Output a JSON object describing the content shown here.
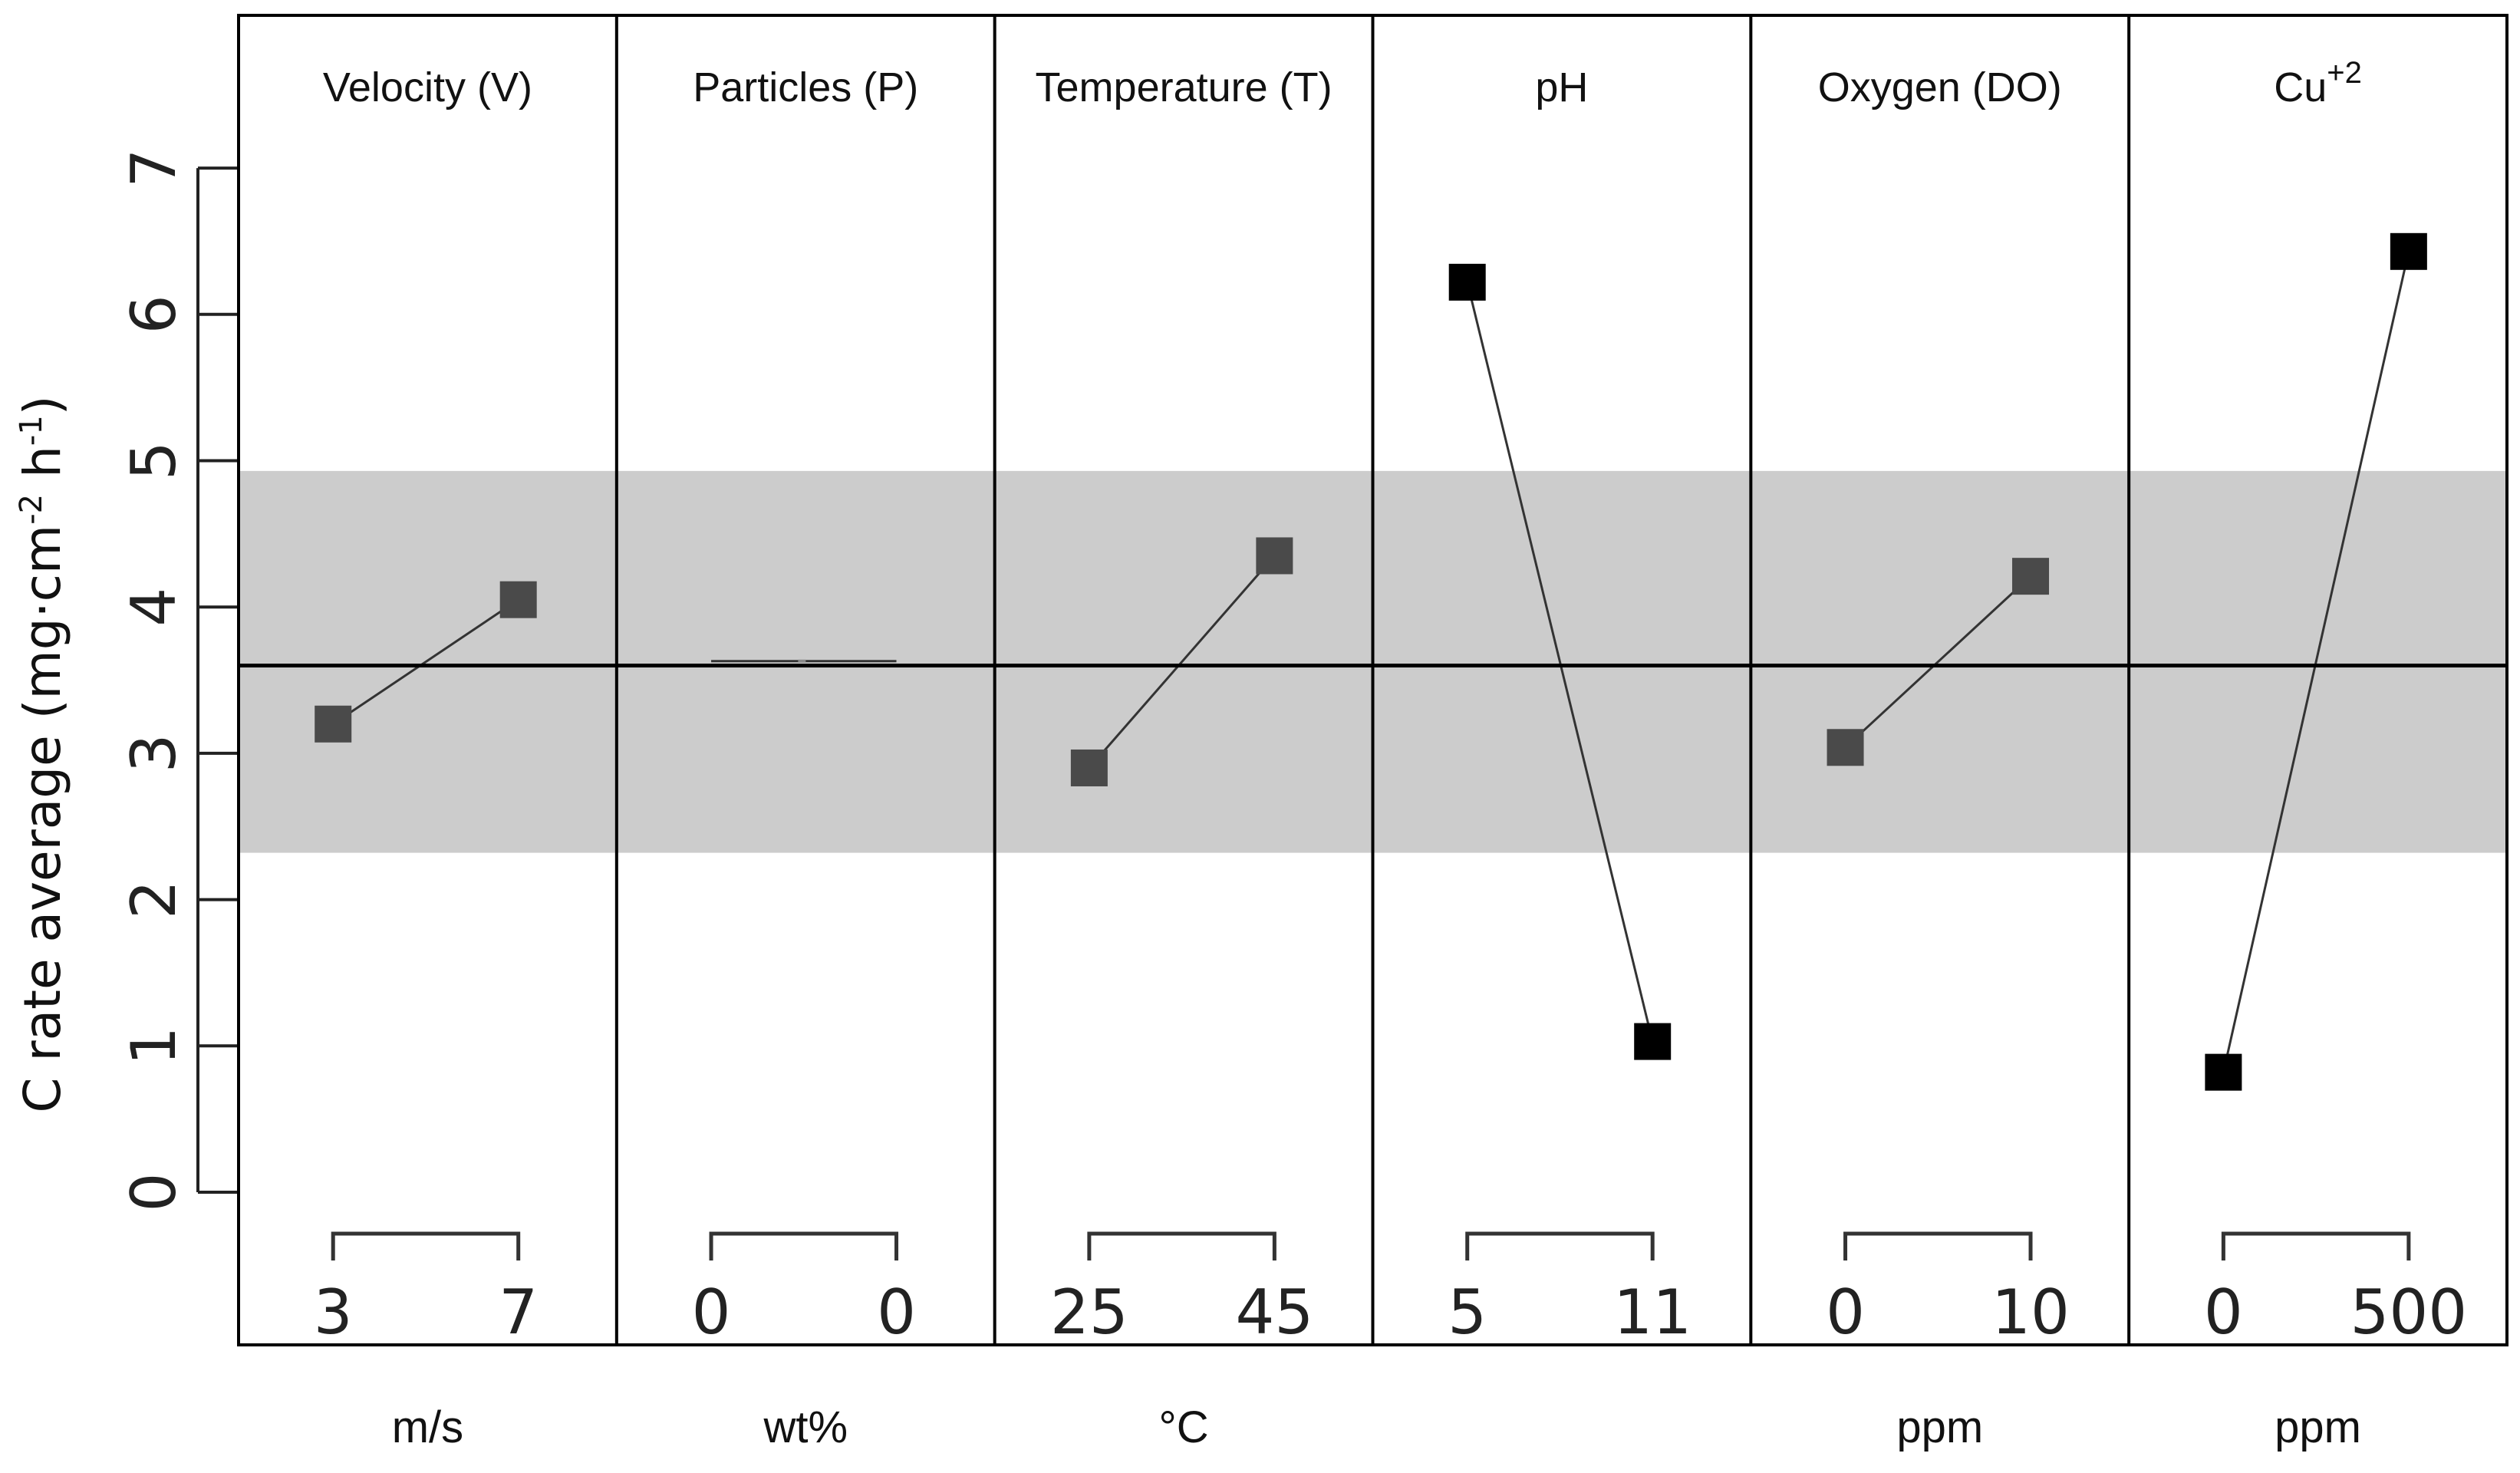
{
  "chart_data": {
    "type": "line",
    "title": "",
    "ylabel": {
      "base": "C rate average (mg·cm",
      "exp1": "-2",
      "mid": " h",
      "exp2": "-1",
      "end": ")"
    },
    "ylim": [
      0,
      7
    ],
    "yticks": [
      0,
      1,
      2,
      3,
      4,
      5,
      6,
      7
    ],
    "reference_line": 3.6,
    "band": [
      2.32,
      4.93
    ],
    "panels": [
      {
        "title": "Velocity (V)",
        "unit": "m/s",
        "levels": [
          "3",
          "7"
        ],
        "values": [
          3.2,
          4.05
        ],
        "color": "#4a4a4a"
      },
      {
        "title": "Particles (P)",
        "unit": "wt%",
        "levels": [
          "0",
          "0"
        ],
        "values": [
          3.63,
          3.63
        ],
        "color": "#8a8a8a"
      },
      {
        "title": "Temperature (T)",
        "unit": "°C",
        "levels": [
          "25",
          "45"
        ],
        "values": [
          2.9,
          4.35
        ],
        "color": "#4a4a4a"
      },
      {
        "title": "pH",
        "unit": "",
        "levels": [
          "5",
          "11"
        ],
        "values": [
          6.22,
          1.03
        ],
        "color": "#000000"
      },
      {
        "title": "Oxygen (DO)",
        "unit": "ppm",
        "levels": [
          "0",
          "10"
        ],
        "values": [
          3.04,
          4.21
        ],
        "color": "#4a4a4a"
      },
      {
        "title": "Cu",
        "title_sup": "+2",
        "unit": "ppm",
        "levels": [
          "0",
          "500"
        ],
        "values": [
          0.82,
          6.43
        ],
        "color": "#000000"
      }
    ]
  }
}
